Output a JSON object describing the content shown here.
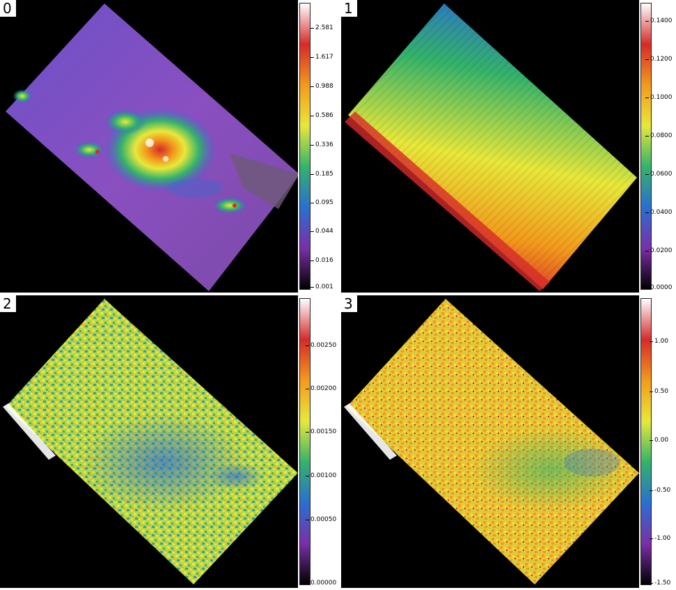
{
  "panels": [
    {
      "id": "0",
      "colorbar": [
        "2.581",
        "1.617",
        "0.988",
        "0.586",
        "0.336",
        "0.185",
        "0.095",
        "0.044",
        "0.016",
        "0.001"
      ]
    },
    {
      "id": "1",
      "colorbar": [
        "0.1400",
        "0.1200",
        "0.1000",
        "0.0800",
        "0.0600",
        "0.0400",
        "0.0200",
        "0.0000"
      ]
    },
    {
      "id": "2",
      "colorbar": [
        "0.00250",
        "0.00200",
        "0.00150",
        "0.00100",
        "0.00050",
        "0.00000"
      ]
    },
    {
      "id": "3",
      "colorbar": [
        "1.00",
        "0.50",
        "0.00",
        "-0.50",
        "-1.00",
        "-1.50"
      ]
    }
  ],
  "colormap": [
    "#000000",
    "#7a2fa8",
    "#2a6fd1",
    "#34b36a",
    "#e8e83a",
    "#f39a1c",
    "#d62a2a",
    "#ffffff"
  ]
}
